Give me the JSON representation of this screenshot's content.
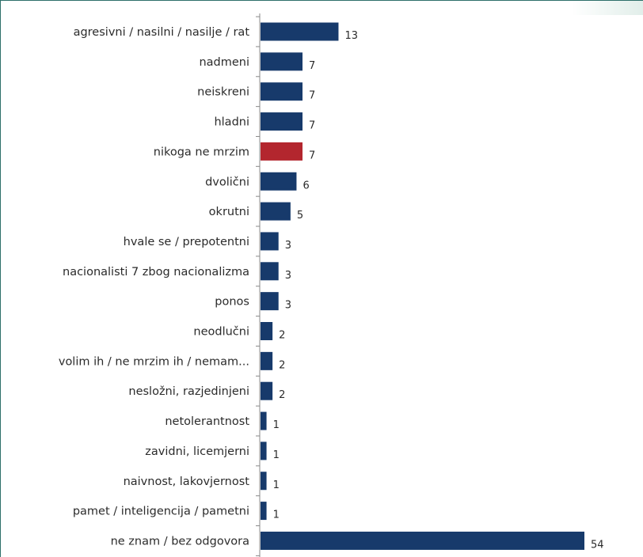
{
  "colors": {
    "bar": "#173a6b",
    "highlight": "#b3262e",
    "frame": "#2e6f6a"
  },
  "chart_data": {
    "type": "bar",
    "orientation": "horizontal",
    "categories": [
      "agresivni / nasilni / nasilje / rat",
      "nadmeni",
      "neiskreni",
      "hladni",
      "nikoga ne mrzim",
      "dvolični",
      "okrutni",
      "hvale se / prepotentni",
      "nacionalisti 7 zbog nacionalizma",
      "ponos",
      "neodlučni",
      "volim ih / ne mrzim ih / nemam...",
      "nesložni, razjedinjeni",
      "netolerantnost",
      "zavidni, licemjerni",
      "naivnost, lakovjernost",
      "pamet / inteligencija / pametni",
      "ne znam / bez odgovora"
    ],
    "values": [
      13,
      7,
      7,
      7,
      7,
      6,
      5,
      3,
      3,
      3,
      2,
      2,
      2,
      1,
      1,
      1,
      1,
      54
    ],
    "value_labels": [
      "13",
      "7",
      "7",
      "7",
      "7",
      "6",
      "5",
      "3",
      "3",
      "3",
      "2",
      "2",
      "2",
      "1",
      "1",
      "1",
      "1",
      "54"
    ],
    "highlighted_category": "nikoga ne mrzim",
    "grid": false,
    "legend": "none"
  }
}
